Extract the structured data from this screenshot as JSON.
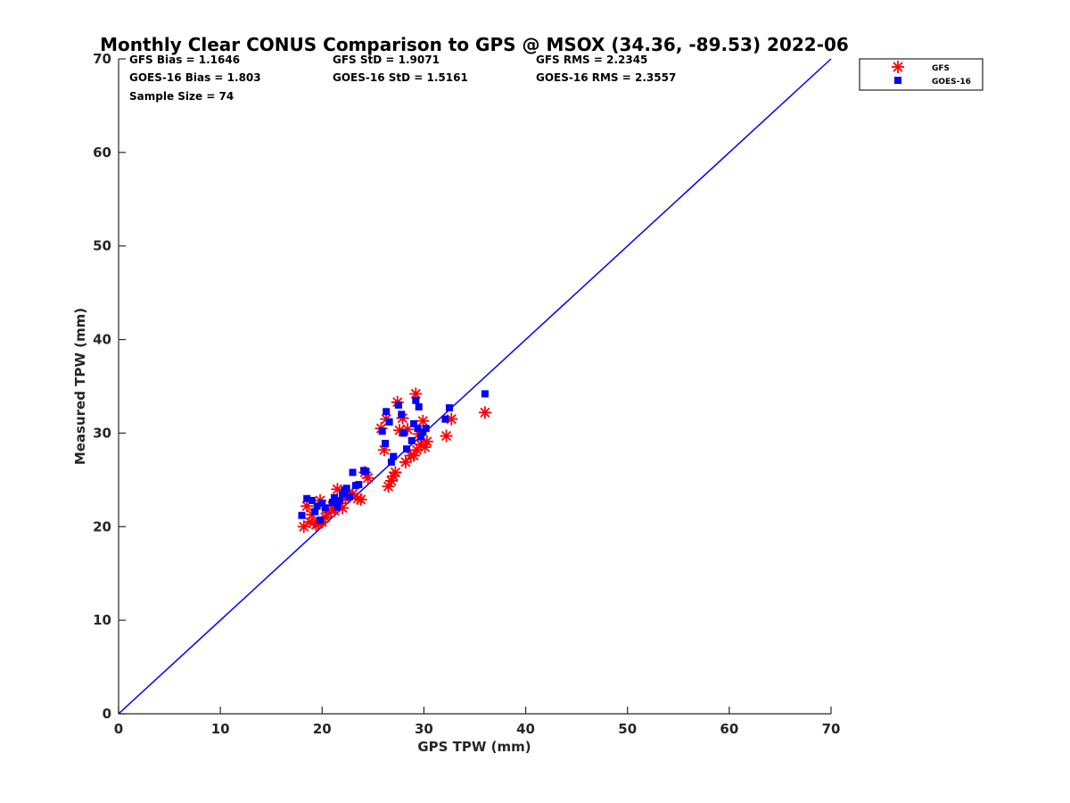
{
  "chart_data": {
    "type": "scatter",
    "title": "Monthly Clear CONUS Comparison to GPS @ MSOX (34.36, -89.53) 2022-06",
    "xlabel": "GPS TPW (mm)",
    "ylabel": "Measured TPW (mm)",
    "xlim": [
      0,
      70
    ],
    "ylim": [
      0,
      70
    ],
    "xticks": [
      0,
      10,
      20,
      30,
      40,
      50,
      60,
      70
    ],
    "yticks": [
      0,
      10,
      20,
      30,
      40,
      50,
      60,
      70
    ],
    "grid": false,
    "legend_position": "outside-top-right",
    "stats": {
      "gfs_bias": "GFS Bias = 1.1646",
      "gfs_std": "GFS StD = 1.9071",
      "gfs_rms": "GFS RMS = 2.2345",
      "goes_bias": "GOES-16 Bias = 1.803",
      "goes_std": "GOES-16 StD = 1.5161",
      "goes_rms": "GOES-16 RMS = 2.3557",
      "sample_size": "Sample Size = 74"
    },
    "reference_line": {
      "name": "1:1",
      "from": [
        0,
        0
      ],
      "to": [
        70,
        70
      ],
      "color": "#0000ff"
    },
    "series": [
      {
        "name": "GFS",
        "marker": "asterisk",
        "color": "#ff0000",
        "points": [
          [
            18.2,
            20.0
          ],
          [
            18.5,
            22.2
          ],
          [
            18.8,
            20.5
          ],
          [
            19.0,
            21.3
          ],
          [
            19.4,
            20.2
          ],
          [
            19.6,
            20.3
          ],
          [
            19.8,
            22.8
          ],
          [
            20.0,
            20.5
          ],
          [
            20.3,
            21.0
          ],
          [
            20.6,
            21.5
          ],
          [
            21.0,
            22.2
          ],
          [
            21.2,
            21.7
          ],
          [
            21.5,
            24.0
          ],
          [
            21.8,
            22.5
          ],
          [
            22.0,
            22.0
          ],
          [
            22.3,
            23.0
          ],
          [
            22.6,
            23.6
          ],
          [
            23.0,
            23.5
          ],
          [
            23.5,
            23.0
          ],
          [
            23.8,
            22.9
          ],
          [
            24.2,
            25.8
          ],
          [
            24.5,
            25.2
          ],
          [
            25.8,
            30.5
          ],
          [
            26.1,
            28.2
          ],
          [
            26.3,
            31.5
          ],
          [
            26.5,
            24.3
          ],
          [
            26.8,
            24.9
          ],
          [
            27.0,
            25.4
          ],
          [
            27.2,
            25.8
          ],
          [
            27.4,
            33.3
          ],
          [
            27.6,
            30.3
          ],
          [
            27.9,
            31.6
          ],
          [
            28.2,
            26.9
          ],
          [
            28.4,
            30.4
          ],
          [
            28.7,
            27.6
          ],
          [
            29.0,
            27.6
          ],
          [
            29.2,
            34.2
          ],
          [
            29.3,
            28.2
          ],
          [
            29.5,
            29.9
          ],
          [
            29.7,
            28.8
          ],
          [
            29.9,
            31.3
          ],
          [
            30.1,
            28.5
          ],
          [
            30.3,
            29.1
          ],
          [
            32.2,
            29.7
          ],
          [
            32.7,
            31.5
          ],
          [
            36.0,
            32.2
          ]
        ]
      },
      {
        "name": "GOES-16",
        "marker": "square",
        "color": "#0000ff",
        "points": [
          [
            18.0,
            21.2
          ],
          [
            18.5,
            23.0
          ],
          [
            19.0,
            22.8
          ],
          [
            19.3,
            21.6
          ],
          [
            19.5,
            22.2
          ],
          [
            19.8,
            20.7
          ],
          [
            20.0,
            22.5
          ],
          [
            20.3,
            22.0
          ],
          [
            21.0,
            22.6
          ],
          [
            21.2,
            23.1
          ],
          [
            21.5,
            22.1
          ],
          [
            21.7,
            22.8
          ],
          [
            22.0,
            23.5
          ],
          [
            22.2,
            23.9
          ],
          [
            22.4,
            24.1
          ],
          [
            22.7,
            23.2
          ],
          [
            23.0,
            25.8
          ],
          [
            23.3,
            24.4
          ],
          [
            23.6,
            24.5
          ],
          [
            24.1,
            26.0
          ],
          [
            24.3,
            25.9
          ],
          [
            25.9,
            30.2
          ],
          [
            26.2,
            28.9
          ],
          [
            26.3,
            32.3
          ],
          [
            26.6,
            31.2
          ],
          [
            26.8,
            26.9
          ],
          [
            27.0,
            27.5
          ],
          [
            27.5,
            33.0
          ],
          [
            27.8,
            32.0
          ],
          [
            28.0,
            30.0
          ],
          [
            28.3,
            28.3
          ],
          [
            28.8,
            29.2
          ],
          [
            29.0,
            31.0
          ],
          [
            29.2,
            33.5
          ],
          [
            29.4,
            30.5
          ],
          [
            29.5,
            32.8
          ],
          [
            29.7,
            29.6
          ],
          [
            29.9,
            30.1
          ],
          [
            30.2,
            30.5
          ],
          [
            32.1,
            31.5
          ],
          [
            32.5,
            32.7
          ],
          [
            36.0,
            34.2
          ]
        ]
      }
    ]
  }
}
